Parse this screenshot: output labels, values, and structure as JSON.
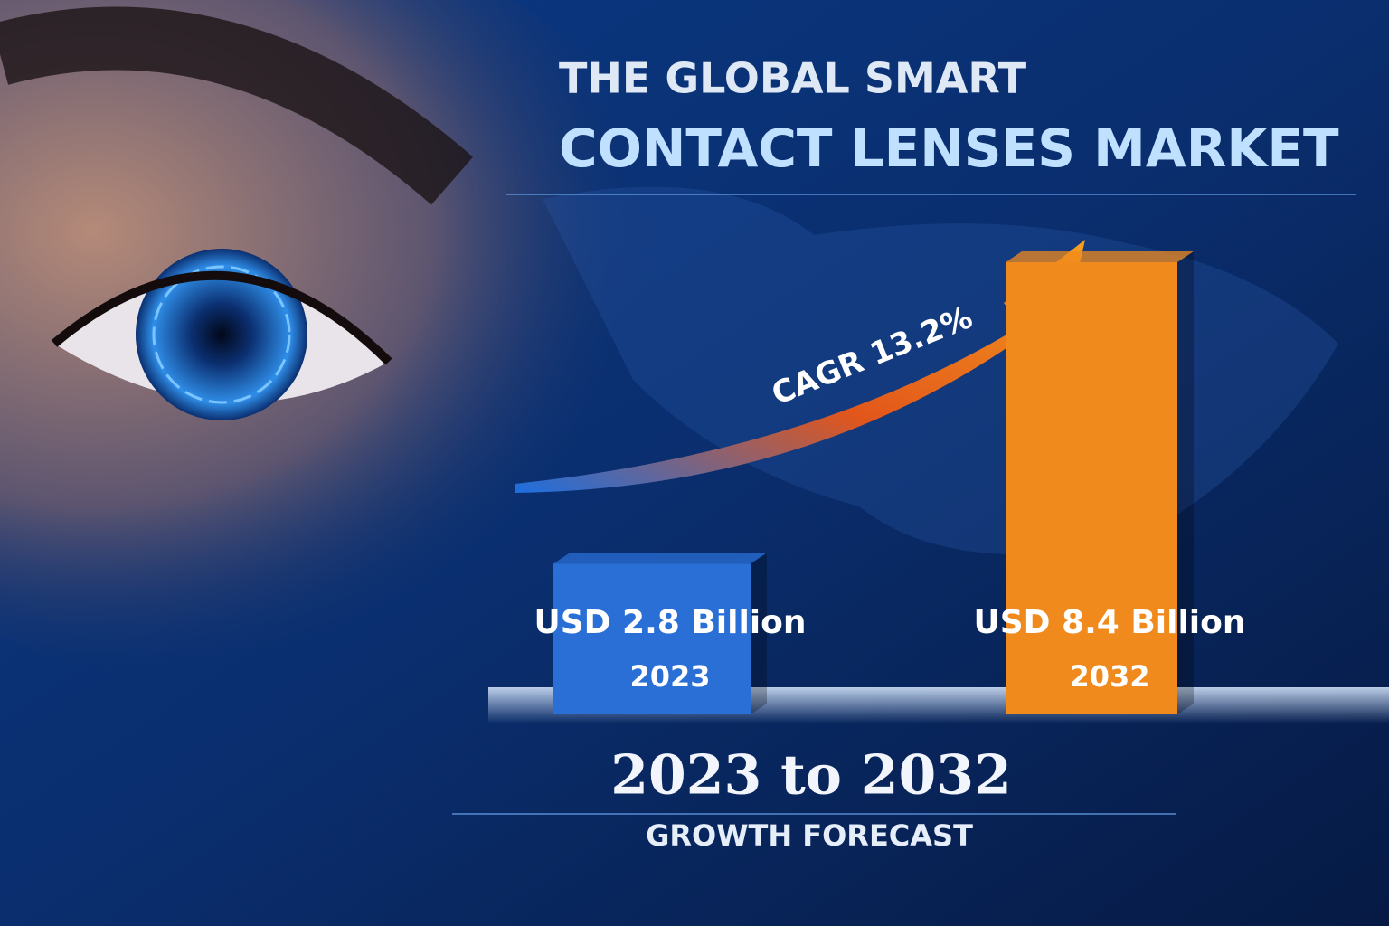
{
  "chart_data": {
    "type": "bar",
    "title": [
      "THE GLOBAL SMART",
      "CONTACT LENSES MARKET"
    ],
    "categories": [
      "2023",
      "2032"
    ],
    "values": [
      2.8,
      8.4
    ],
    "value_labels": [
      "USD 2.8 Billion",
      "USD 8.4 Billion"
    ],
    "colors": [
      "#2a6fd6",
      "#f08a1c"
    ],
    "annotation": "CAGR 13.2%",
    "subtitle": "2023 to 2032",
    "caption": "GROWTH FORECAST"
  }
}
